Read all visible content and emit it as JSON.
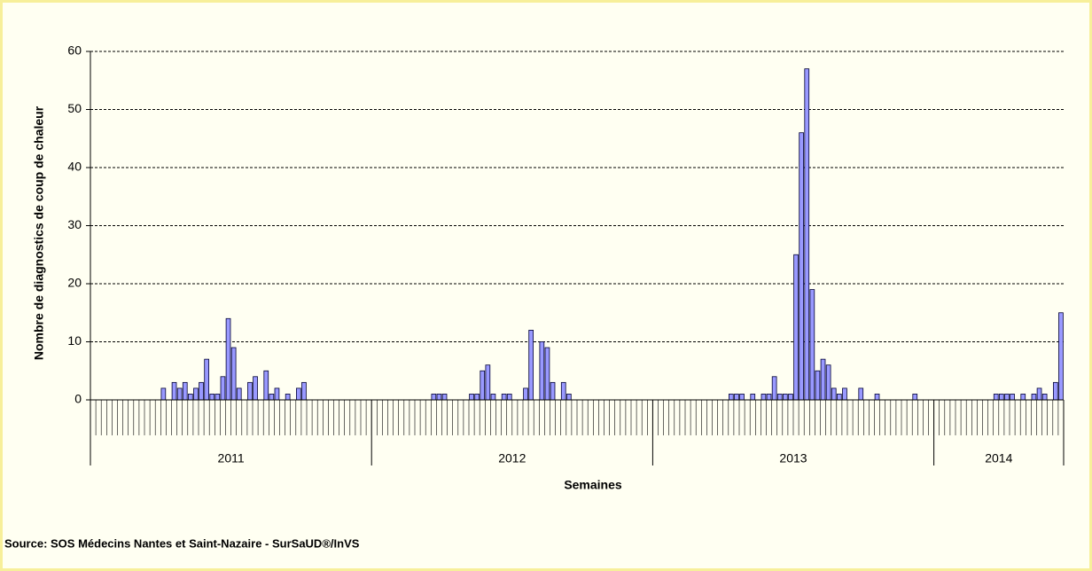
{
  "chart_data": {
    "type": "bar",
    "y_label": "Nombre de diagnostics de coup de chaleur",
    "x_label": "Semaines",
    "source": "Source: SOS Médecins Nantes et Saint-Nazaire - SurSaUD®/InVS",
    "ylim": [
      0,
      60
    ],
    "yticks": [
      0,
      10,
      20,
      30,
      40,
      50,
      60
    ],
    "grid": true,
    "color": "#9999ff",
    "years": [
      {
        "label": "2011",
        "values": [
          0,
          0,
          0,
          0,
          0,
          0,
          0,
          0,
          0,
          0,
          0,
          0,
          0,
          2,
          0,
          3,
          2,
          3,
          1,
          2,
          3,
          7,
          1,
          1,
          4,
          14,
          9,
          2,
          0,
          3,
          4,
          0,
          5,
          1,
          2,
          0,
          1,
          0,
          2,
          3,
          0,
          0,
          0,
          0,
          0,
          0,
          0,
          0,
          0,
          0,
          0,
          0
        ]
      },
      {
        "label": "2012",
        "values": [
          0,
          0,
          0,
          0,
          0,
          0,
          0,
          0,
          0,
          0,
          0,
          1,
          1,
          1,
          0,
          0,
          0,
          0,
          1,
          1,
          5,
          6,
          1,
          0,
          1,
          1,
          0,
          0,
          2,
          12,
          0,
          10,
          9,
          3,
          0,
          3,
          1,
          0,
          0,
          0,
          0,
          0,
          0,
          0,
          0,
          0,
          0,
          0,
          0,
          0,
          0,
          0
        ]
      },
      {
        "label": "2013",
        "values": [
          0,
          0,
          0,
          0,
          0,
          0,
          0,
          0,
          0,
          0,
          0,
          0,
          0,
          0,
          1,
          1,
          1,
          0,
          1,
          0,
          1,
          1,
          4,
          1,
          1,
          1,
          25,
          46,
          57,
          19,
          5,
          7,
          6,
          2,
          1,
          2,
          0,
          0,
          2,
          0,
          0,
          1,
          0,
          0,
          0,
          0,
          0,
          0,
          1,
          0,
          0,
          0
        ]
      },
      {
        "label": "2014",
        "values": [
          0,
          0,
          0,
          0,
          0,
          0,
          0,
          0,
          0,
          0,
          0,
          1,
          1,
          1,
          1,
          0,
          1,
          0,
          1,
          2,
          1,
          0,
          3,
          15
        ]
      }
    ]
  }
}
